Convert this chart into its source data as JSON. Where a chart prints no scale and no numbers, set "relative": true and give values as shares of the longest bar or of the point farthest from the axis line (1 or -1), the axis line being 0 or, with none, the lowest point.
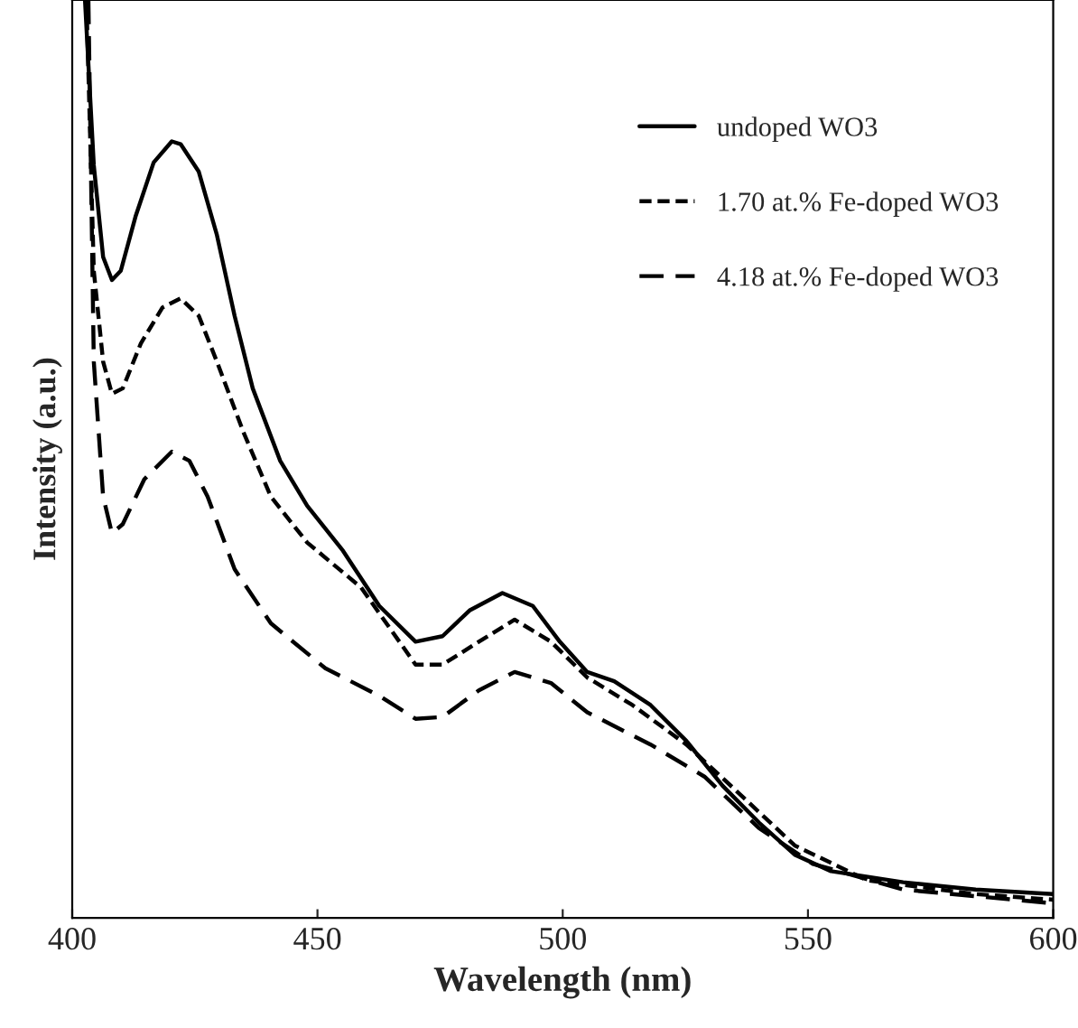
{
  "chart_data": {
    "type": "line",
    "xlabel": "Wavelength (nm)",
    "ylabel": "Intensity (a.u.)",
    "relative": true,
    "xlim": [
      400,
      600
    ],
    "xticks": [
      400,
      450,
      500,
      550,
      600
    ],
    "legend": "top right",
    "grid": false,
    "marker": "none",
    "series": [
      {
        "name": "undoped WO3",
        "color": "#000000",
        "line_style": "solid",
        "x": [
          402.6,
          404.4,
          406.3,
          408.1,
          409.9,
          412.9,
          416.6,
          420.3,
          422.1,
          425.8,
          429.5,
          433.1,
          436.8,
          442.4,
          447.9,
          455.2,
          462.6,
          470.0,
          475.5,
          481.0,
          487.7,
          493.9,
          499.4,
          505.0,
          510.5,
          517.9,
          525.2,
          532.6,
          540.0,
          547.3,
          554.7,
          569.4,
          584.2,
          600.0
        ],
        "values": [
          1.0,
          0.82,
          0.72,
          0.695,
          0.705,
          0.764,
          0.823,
          0.846,
          0.843,
          0.813,
          0.744,
          0.656,
          0.577,
          0.498,
          0.449,
          0.4,
          0.34,
          0.301,
          0.307,
          0.335,
          0.354,
          0.34,
          0.301,
          0.268,
          0.258,
          0.232,
          0.193,
          0.144,
          0.104,
          0.069,
          0.051,
          0.039,
          0.031,
          0.026
        ]
      },
      {
        "name": "1.70 at.% Fe-doped WO3",
        "color": "#000000",
        "line_style": "dotted",
        "x": [
          402.9,
          404.4,
          406.3,
          408.1,
          410.3,
          414.0,
          418.4,
          422.1,
          425.8,
          429.5,
          435.0,
          440.5,
          447.9,
          458.9,
          470.0,
          475.5,
          482.9,
          490.2,
          497.6,
          505.0,
          514.2,
          525.2,
          536.3,
          547.3,
          562.1,
          584.2,
          600.0
        ],
        "values": [
          1.0,
          0.705,
          0.606,
          0.571,
          0.577,
          0.626,
          0.665,
          0.675,
          0.656,
          0.606,
          0.528,
          0.459,
          0.409,
          0.36,
          0.276,
          0.276,
          0.301,
          0.325,
          0.301,
          0.262,
          0.232,
          0.189,
          0.134,
          0.079,
          0.041,
          0.026,
          0.02
        ]
      },
      {
        "name": "4.18 at.% Fe-doped WO3",
        "color": "#000000",
        "line_style": "dashed",
        "x": [
          403.3,
          404.4,
          406.3,
          408.1,
          410.3,
          414.7,
          420.3,
          423.9,
          427.6,
          433.1,
          440.5,
          451.6,
          462.6,
          470.0,
          475.5,
          482.9,
          490.2,
          497.6,
          505.0,
          517.9,
          528.9,
          540.0,
          551.0,
          569.4,
          600.0
        ],
        "values": [
          1.0,
          0.606,
          0.459,
          0.419,
          0.429,
          0.478,
          0.508,
          0.498,
          0.459,
          0.38,
          0.321,
          0.272,
          0.242,
          0.217,
          0.219,
          0.248,
          0.268,
          0.256,
          0.224,
          0.189,
          0.154,
          0.098,
          0.059,
          0.031,
          0.016
        ]
      }
    ]
  }
}
